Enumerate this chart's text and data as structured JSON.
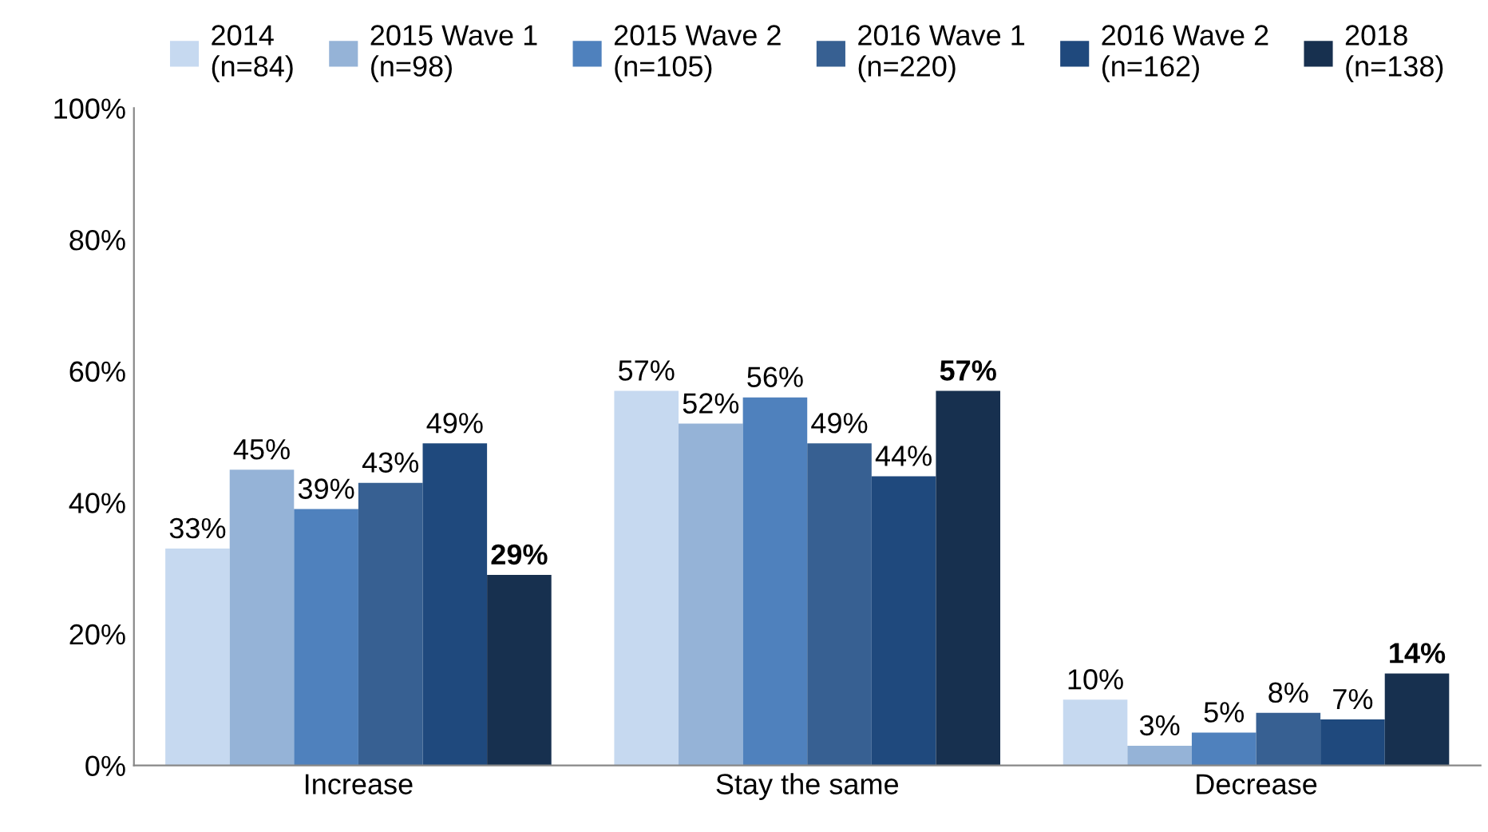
{
  "chart_data": {
    "type": "bar",
    "categories": [
      "Increase",
      "Stay the same",
      "Decrease"
    ],
    "series": [
      {
        "name": "2014\n(n=84)",
        "color": "#c6d9f0",
        "values": [
          33,
          57,
          10
        ],
        "value_labels": [
          "33%",
          "57%",
          "10%"
        ]
      },
      {
        "name": "2015 Wave 1\n(n=98)",
        "color": "#95b3d7",
        "values": [
          45,
          52,
          3
        ],
        "value_labels": [
          "45%",
          "52%",
          "3%"
        ]
      },
      {
        "name": "2015 Wave 2\n(n=105)",
        "color": "#4f81bd",
        "values": [
          39,
          56,
          5
        ],
        "value_labels": [
          "39%",
          "56%",
          "5%"
        ]
      },
      {
        "name": "2016 Wave 1\n(n=220)",
        "color": "#376092",
        "values": [
          43,
          49,
          8
        ],
        "value_labels": [
          "43%",
          "49%",
          "8%"
        ]
      },
      {
        "name": "2016 Wave 2\n(n=162)",
        "color": "#1f497d",
        "values": [
          49,
          44,
          7
        ],
        "value_labels": [
          "49%",
          "44%",
          "7%"
        ]
      },
      {
        "name": "2018\n(n=138)",
        "color": "#17304f",
        "values": [
          29,
          57,
          14
        ],
        "value_labels": [
          "29%",
          "57%",
          "14%"
        ]
      }
    ],
    "ylim": [
      0,
      100
    ],
    "yticks": [
      {
        "value": 0,
        "label": "0%"
      },
      {
        "value": 20,
        "label": "20%"
      },
      {
        "value": 40,
        "label": "40%"
      },
      {
        "value": 60,
        "label": "60%"
      },
      {
        "value": 80,
        "label": "80%"
      },
      {
        "value": 100,
        "label": "100%"
      }
    ],
    "grid": false,
    "legend": "top"
  }
}
